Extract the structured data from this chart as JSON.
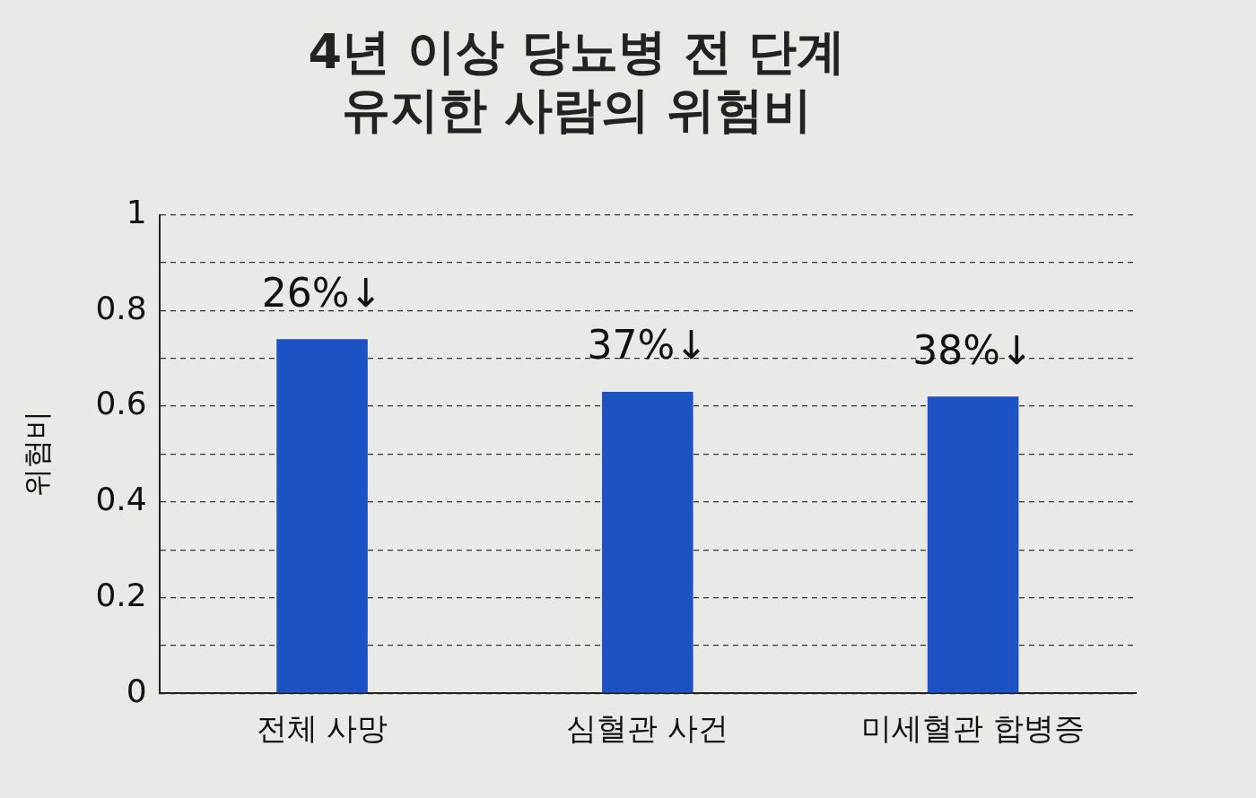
{
  "chart_data": {
    "type": "bar",
    "title": "4년 이상 당뇨병 전 단계\n유지한 사람의 위험비",
    "ylabel": "위험비",
    "categories": [
      "전체 사망",
      "심혈관 사건",
      "미세혈관 합병증"
    ],
    "values": [
      0.74,
      0.63,
      0.62
    ],
    "color": "#1c52c4",
    "ylim": [
      0,
      1
    ],
    "yticks": [
      0,
      {
        "value": 0.1,
        "label": null
      },
      0.2,
      {
        "value": 0.3,
        "label": null
      },
      0.4,
      {
        "value": 0.5,
        "label": null
      },
      0.6,
      {
        "value": 0.7,
        "label": null
      },
      0.8,
      {
        "value": 0.9,
        "label": null
      },
      1
    ],
    "grid": "y",
    "annotations": [
      {
        "text": "26%↓",
        "x": "전체 사망",
        "y": 0.74
      },
      {
        "text": "37%↓",
        "x": "심혈관 사건",
        "y": 0.63
      },
      {
        "text": "38%↓",
        "x": "미세혈관 합병증",
        "y": 0.62
      }
    ]
  }
}
